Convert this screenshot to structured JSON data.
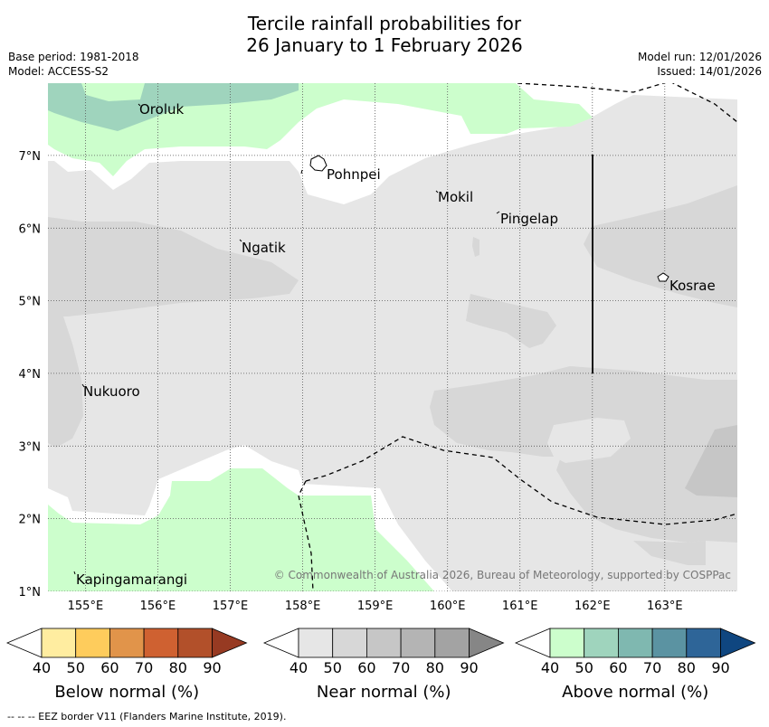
{
  "title": {
    "line1": "Tercile rainfall probabilities for",
    "line2": "26 January to 1 February 2026"
  },
  "meta": {
    "base_period": "Base period: 1981-2018",
    "model": "Model: ACCESS-S2",
    "model_run": "Model run: 12/01/2026",
    "issued": "Issued: 14/01/2026"
  },
  "map": {
    "extent": {
      "lon": [
        154.5,
        164.0
      ],
      "lat": [
        1.0,
        8.0
      ]
    },
    "lon_ticks": [
      "155°E",
      "156°E",
      "157°E",
      "158°E",
      "159°E",
      "160°E",
      "161°E",
      "162°E",
      "163°E"
    ],
    "lat_ticks": [
      "1°N",
      "2°N",
      "3°N",
      "4°N",
      "5°N",
      "6°N",
      "7°N"
    ],
    "places": [
      {
        "name": "Oroluk",
        "lon": 155.75,
        "lat": 7.6
      },
      {
        "name": "Pohnpei",
        "lon": 158.3,
        "lat": 6.9
      },
      {
        "name": "Mokil",
        "lon": 159.85,
        "lat": 6.6
      },
      {
        "name": "Pingelap",
        "lon": 160.75,
        "lat": 6.2
      },
      {
        "name": "Ngatik",
        "lon": 157.2,
        "lat": 5.8
      },
      {
        "name": "Kosrae",
        "lon": 163.0,
        "lat": 5.3
      },
      {
        "name": "Nukuoro",
        "lon": 154.95,
        "lat": 3.8
      },
      {
        "name": "Kapingamarangi",
        "lon": 154.95,
        "lat": 1.2
      }
    ],
    "copyright": "© Commonwealth of Australia 2026, Bureau of Meteorology, supported by COSPPac"
  },
  "legends": [
    {
      "id": "below",
      "label": "Below normal (%)",
      "ticks": [
        "40",
        "50",
        "60",
        "70",
        "80",
        "90"
      ],
      "colors": [
        "#ffffff",
        "#ffeda0",
        "#fecc5c",
        "#e1944a",
        "#cf6131",
        "#b2502a",
        "#973a22"
      ]
    },
    {
      "id": "near",
      "label": "Near normal (%)",
      "ticks": [
        "40",
        "50",
        "60",
        "70",
        "80",
        "90"
      ],
      "colors": [
        "#ffffff",
        "#e6e6e6",
        "#d7d7d7",
        "#c6c6c6",
        "#b4b4b4",
        "#a3a3a3",
        "#868686"
      ]
    },
    {
      "id": "above",
      "label": "Above normal (%)",
      "ticks": [
        "40",
        "50",
        "60",
        "70",
        "80",
        "90"
      ],
      "colors": [
        "#ffffff",
        "#ccfecc",
        "#9fd4bd",
        "#7fb8b0",
        "#5b93a2",
        "#2e6598",
        "#0f4680"
      ]
    }
  ],
  "footnote": "-- -- -- EEZ border V11 (Flanders Marine Institute, 2019)."
}
